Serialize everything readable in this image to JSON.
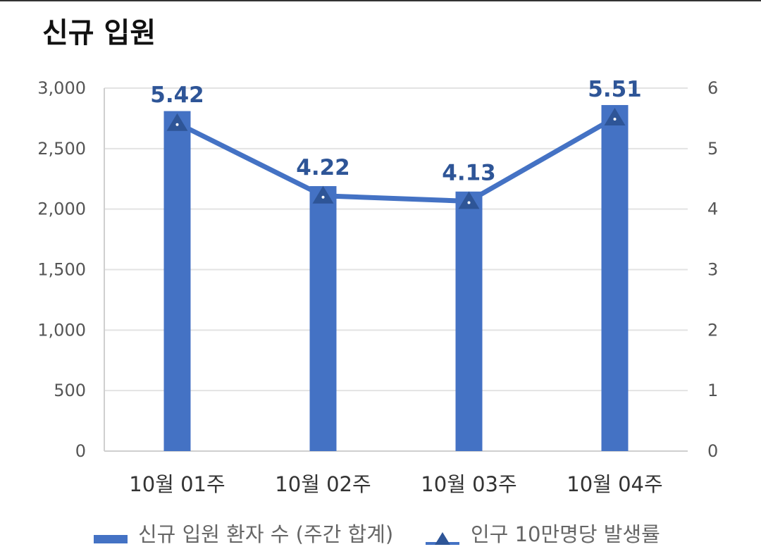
{
  "title": "신규 입원",
  "colors": {
    "bar": "#4472c4",
    "line": "#4472c4",
    "marker": "#2e5597",
    "label": "#2e5597"
  },
  "legend": {
    "bar_label": "신규 입원 환자 수 (주간 합계)",
    "line_label": "인구 10만명당 발생률"
  },
  "chart_data": {
    "type": "bar",
    "categories": [
      "10월 01주",
      "10월 02주",
      "10월 03주",
      "10월 04주"
    ],
    "series": [
      {
        "name": "신규 입원 환자 수 (주간 합계)",
        "type": "bar",
        "axis": "left",
        "values": [
          2810,
          2190,
          2145,
          2860
        ]
      },
      {
        "name": "인구 10만명당 발생률",
        "type": "line",
        "axis": "right",
        "marker": "triangle",
        "values": [
          5.42,
          4.22,
          4.13,
          5.51
        ],
        "data_labels": [
          "5.42",
          "4.22",
          "4.13",
          "5.51"
        ]
      }
    ],
    "ylim_left": [
      0,
      3000
    ],
    "yticks_left": [
      "0",
      "500",
      "1,000",
      "1,500",
      "2,000",
      "2,500",
      "3,000"
    ],
    "ylim_right": [
      0,
      6
    ],
    "yticks_right": [
      "0",
      "1",
      "2",
      "3",
      "4",
      "5",
      "6"
    ],
    "grid": true,
    "legend_position": "bottom"
  }
}
